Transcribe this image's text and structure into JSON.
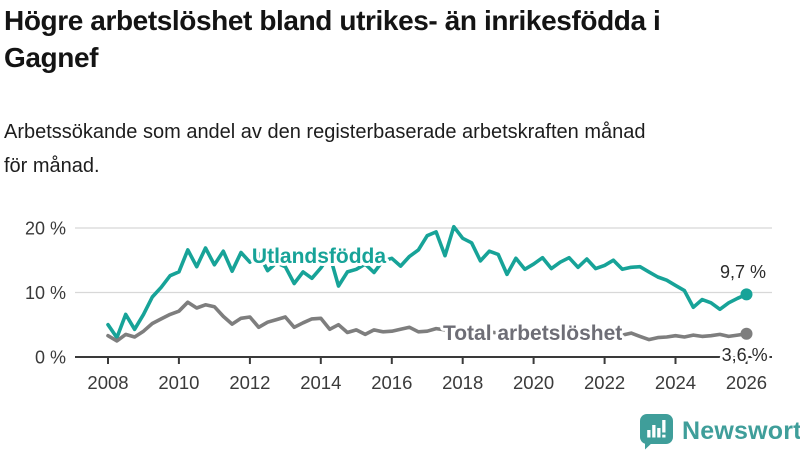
{
  "header": {
    "title_lines": [
      "Högre arbetslöshet bland utrikes- än inrikesfödda i",
      "Gagnef"
    ],
    "subtitle_lines": [
      "Arbetssökande som andel av den registerbaserade arbetskraften månad",
      "för månad."
    ]
  },
  "footer": {
    "brand": "Newsworthy",
    "brand_color": "#3f9e9a",
    "logo_icon": "bar-chart-speech-bubble-icon"
  },
  "chart_data": {
    "type": "line",
    "title": "Högre arbetslöshet bland utrikes- än inrikesfödda i Gagnef",
    "subtitle": "Arbetssökande som andel av den registerbaserade arbetskraften månad för månad.",
    "unit": "%",
    "x_start": 2008,
    "x_step": 0.25,
    "xlim": [
      2007.07,
      2026.72
    ],
    "ylim": [
      0,
      20.93
    ],
    "grid": true,
    "axis_color": "#3a3a3a",
    "grid_color": "#d8d8d8",
    "tick_label_color": "#3a3a3a",
    "x_ticks": [
      {
        "value": 2008,
        "label": "2008"
      },
      {
        "value": 2010,
        "label": "2010"
      },
      {
        "value": 2012,
        "label": "2012"
      },
      {
        "value": 2014,
        "label": "2014"
      },
      {
        "value": 2016,
        "label": "2016"
      },
      {
        "value": 2018,
        "label": "2018"
      },
      {
        "value": 2020,
        "label": "2020"
      },
      {
        "value": 2022,
        "label": "2022"
      },
      {
        "value": 2024,
        "label": "2024"
      },
      {
        "value": 2026,
        "label": "2026"
      }
    ],
    "y_ticks": [
      {
        "value": 0,
        "label": "0 %"
      },
      {
        "value": 10,
        "label": "10 %"
      },
      {
        "value": 20,
        "label": "20 %"
      }
    ],
    "series": [
      {
        "name": "Utlandsfödda",
        "color": "#17a398",
        "end_value_label": "9,7 %",
        "values": [
          5.0,
          3.0,
          6.6,
          4.3,
          6.6,
          9.3,
          10.8,
          12.6,
          13.2,
          16.6,
          14.0,
          16.9,
          14.3,
          16.4,
          13.3,
          16.2,
          14.7,
          16.0,
          13.4,
          14.6,
          14.0,
          11.4,
          13.2,
          12.2,
          13.8,
          15.8,
          11.0,
          13.2,
          13.6,
          14.4,
          13.1,
          14.9,
          15.3,
          14.1,
          15.6,
          16.6,
          18.8,
          19.4,
          15.7,
          20.2,
          18.4,
          17.7,
          14.9,
          16.4,
          15.9,
          12.8,
          15.3,
          13.6,
          14.4,
          15.4,
          13.7,
          14.7,
          15.4,
          13.9,
          15.2,
          13.7,
          14.2,
          15.0,
          13.6,
          13.9,
          14.0,
          13.2,
          12.4,
          11.9,
          11.1,
          10.3,
          7.7,
          8.9,
          8.4,
          7.4,
          8.4,
          9.1,
          9.7
        ]
      },
      {
        "name": "Total arbetslöshet",
        "color": "#7e7e7e",
        "end_value_label": "3,6 %",
        "values": [
          3.3,
          2.5,
          3.5,
          3.1,
          4.0,
          5.2,
          5.9,
          6.6,
          7.1,
          8.5,
          7.6,
          8.1,
          7.8,
          6.3,
          5.1,
          6.0,
          6.2,
          4.6,
          5.4,
          5.8,
          6.2,
          4.6,
          5.3,
          5.9,
          6.0,
          4.3,
          5.0,
          3.8,
          4.2,
          3.5,
          4.2,
          3.9,
          4.0,
          4.3,
          4.6,
          3.9,
          4.0,
          4.4,
          4.2,
          4.4,
          4.1,
          3.8,
          3.6,
          3.9,
          3.7,
          4.0,
          3.5,
          3.8,
          4.1,
          4.3,
          3.9,
          3.7,
          3.9,
          3.5,
          3.8,
          3.5,
          3.6,
          3.8,
          3.4,
          3.7,
          3.2,
          2.7,
          3.0,
          3.1,
          3.3,
          3.1,
          3.4,
          3.2,
          3.3,
          3.5,
          3.2,
          3.4,
          3.6
        ]
      }
    ],
    "annotations": [
      {
        "text": "Utlandsfödda",
        "x": 2013.95,
        "y": 14.57,
        "anchor": "middle",
        "color": "#17a398",
        "bold": true
      },
      {
        "text": "Total arbetslöshet",
        "x": 2019.97,
        "y": 2.64,
        "anchor": "middle",
        "color": "#6e6e76",
        "bold": true
      },
      {
        "text": "9,7 %",
        "x": 2026.55,
        "y": 12.25,
        "anchor": "end",
        "color": "#2b2b2b",
        "bold": false
      },
      {
        "text": "3,6 %",
        "x": 2026.6,
        "y": -0.6,
        "anchor": "end",
        "color": "#2b2b2b",
        "bold": false
      }
    ]
  }
}
